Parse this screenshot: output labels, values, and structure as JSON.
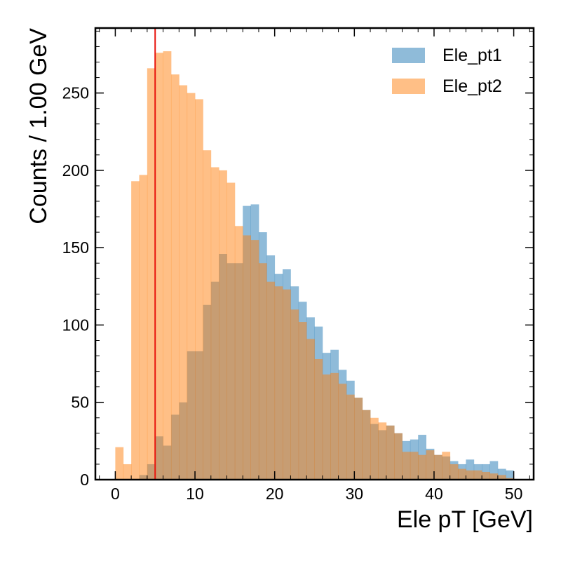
{
  "chart_data": {
    "type": "histogram",
    "xlabel": "Ele pT [GeV]",
    "ylabel": "Counts / 1.00 GeV",
    "xlim": [
      -2.5,
      52.5
    ],
    "ylim": [
      0,
      292
    ],
    "bin_edges_start": 0,
    "bin_width": 1,
    "xticks": [
      0,
      10,
      20,
      30,
      40,
      50
    ],
    "xtick_labels": [
      "0",
      "10",
      "20",
      "30",
      "40",
      "50"
    ],
    "yticks": [
      0,
      50,
      100,
      150,
      200,
      250
    ],
    "ytick_labels": [
      "0",
      "50",
      "100",
      "150",
      "200",
      "250"
    ],
    "series": [
      {
        "name": "Ele_pt1",
        "color": "#1f77b4",
        "alpha": 0.5,
        "values": [
          0,
          0,
          0,
          3,
          10,
          28,
          22,
          42,
          50,
          83,
          83,
          113,
          128,
          146,
          140,
          140,
          177,
          178,
          160,
          145,
          133,
          136,
          125,
          115,
          105,
          99,
          82,
          84,
          71,
          64,
          53,
          45,
          36,
          32,
          35,
          30,
          25,
          26,
          29,
          20,
          16,
          15,
          12,
          10,
          13,
          10,
          10,
          12,
          7,
          6
        ]
      },
      {
        "name": "Ele_pt2",
        "color": "#ff7f0e",
        "alpha": 0.5,
        "values": [
          21,
          10,
          193,
          197,
          266,
          276,
          277,
          262,
          255,
          250,
          246,
          213,
          202,
          200,
          192,
          164,
          158,
          155,
          140,
          128,
          125,
          123,
          110,
          102,
          91,
          78,
          68,
          69,
          62,
          55,
          53,
          45,
          40,
          37,
          35,
          30,
          18,
          18,
          16,
          19,
          16,
          18,
          10,
          7,
          6,
          6,
          5,
          4,
          3,
          1
        ]
      }
    ],
    "vline": {
      "x": 5,
      "color": "#e8150e"
    },
    "legend_position": "top-right",
    "grid": false
  }
}
